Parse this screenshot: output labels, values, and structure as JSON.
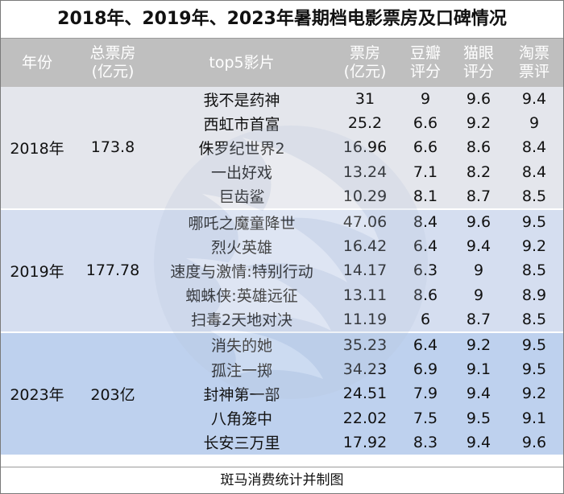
{
  "title": "2018年、2019年、2023年暑期档电影票房及口碑情况",
  "footer": "斑马消费统计并制图",
  "headers": {
    "year": "年份",
    "total_line1": "总票房",
    "total_line2": "(亿元)",
    "films": "top5影片",
    "box_line1": "票房",
    "box_line2": "(亿元)",
    "douban_line1": "豆瓣",
    "douban_line2": "评分",
    "maoyan_line1": "猫眼",
    "maoyan_line2": "评分",
    "taopiao_line1": "淘票",
    "taopiao_line2": "票评"
  },
  "groups": [
    {
      "year": "2018年",
      "total": "173.8",
      "films": [
        {
          "name": "我不是药神",
          "box": "31",
          "douban": "9",
          "maoyan": "9.6",
          "taopiao": "9.4"
        },
        {
          "name": "西虹市首富",
          "box": "25.2",
          "douban": "6.6",
          "maoyan": "9.2",
          "taopiao": "9"
        },
        {
          "name": "侏罗纪世界2",
          "box": "16.96",
          "douban": "6.6",
          "maoyan": "8.6",
          "taopiao": "8.4"
        },
        {
          "name": "一出好戏",
          "box": "13.24",
          "douban": "7.1",
          "maoyan": "8.2",
          "taopiao": "8.4"
        },
        {
          "name": "巨齿鲨",
          "box": "10.29",
          "douban": "8.1",
          "maoyan": "8.7",
          "taopiao": "8.5"
        }
      ]
    },
    {
      "year": "2019年",
      "total": "177.78",
      "films": [
        {
          "name": "哪吒之魔童降世",
          "box": "47.06",
          "douban": "8.4",
          "maoyan": "9.6",
          "taopiao": "9.5"
        },
        {
          "name": "烈火英雄",
          "box": "16.42",
          "douban": "6.4",
          "maoyan": "9.4",
          "taopiao": "9.2"
        },
        {
          "name": "速度与激情:特别行动",
          "box": "14.17",
          "douban": "6.3",
          "maoyan": "9",
          "taopiao": "8.5"
        },
        {
          "name": "蜘蛛侠:英雄远征",
          "box": "13.11",
          "douban": "8.6",
          "maoyan": "9",
          "taopiao": "8.9"
        },
        {
          "name": "扫毒2天地对决",
          "box": "11.19",
          "douban": "6",
          "maoyan": "8.7",
          "taopiao": "8.5"
        }
      ]
    },
    {
      "year": "2023年",
      "total": "203亿",
      "films": [
        {
          "name": "消失的她",
          "box": "35.23",
          "douban": "6.4",
          "maoyan": "9.2",
          "taopiao": "9.5"
        },
        {
          "name": "孤注一掷",
          "box": "34.23",
          "douban": "6.9",
          "maoyan": "9.1",
          "taopiao": "9.5"
        },
        {
          "name": "封神第一部",
          "box": "24.51",
          "douban": "7.9",
          "maoyan": "9.4",
          "taopiao": "9.2"
        },
        {
          "name": "八角笼中",
          "box": "22.02",
          "douban": "7.5",
          "maoyan": "9.5",
          "taopiao": "9.1"
        },
        {
          "name": "长安三万里",
          "box": "17.92",
          "douban": "8.3",
          "maoyan": "9.4",
          "taopiao": "9.6"
        }
      ]
    }
  ],
  "chart_data": {
    "type": "table",
    "title": "2018年、2019年、2023年暑期档电影票房及口碑情况",
    "columns": [
      "年份",
      "总票房(亿元)",
      "top5影片",
      "票房(亿元)",
      "豆瓣评分",
      "猫眼评分",
      "淘票票评"
    ],
    "rows": [
      [
        "2018年",
        "173.8",
        "我不是药神",
        31,
        9,
        9.6,
        9.4
      ],
      [
        "2018年",
        "173.8",
        "西虹市首富",
        25.2,
        6.6,
        9.2,
        9
      ],
      [
        "2018年",
        "173.8",
        "侏罗纪世界2",
        16.96,
        6.6,
        8.6,
        8.4
      ],
      [
        "2018年",
        "173.8",
        "一出好戏",
        13.24,
        7.1,
        8.2,
        8.4
      ],
      [
        "2018年",
        "173.8",
        "巨齿鲨",
        10.29,
        8.1,
        8.7,
        8.5
      ],
      [
        "2019年",
        "177.78",
        "哪吒之魔童降世",
        47.06,
        8.4,
        9.6,
        9.5
      ],
      [
        "2019年",
        "177.78",
        "烈火英雄",
        16.42,
        6.4,
        9.4,
        9.2
      ],
      [
        "2019年",
        "177.78",
        "速度与激情:特别行动",
        14.17,
        6.3,
        9,
        8.5
      ],
      [
        "2019年",
        "177.78",
        "蜘蛛侠:英雄远征",
        13.11,
        8.6,
        9,
        8.9
      ],
      [
        "2019年",
        "177.78",
        "扫毒2天地对决",
        11.19,
        6,
        8.7,
        8.5
      ],
      [
        "2023年",
        "203亿",
        "消失的她",
        35.23,
        6.4,
        9.2,
        9.5
      ],
      [
        "2023年",
        "203亿",
        "孤注一掷",
        34.23,
        6.9,
        9.1,
        9.5
      ],
      [
        "2023年",
        "203亿",
        "封神第一部",
        24.51,
        7.9,
        9.4,
        9.2
      ],
      [
        "2023年",
        "203亿",
        "八角笼中",
        22.02,
        7.5,
        9.5,
        9.1
      ],
      [
        "2023年",
        "203亿",
        "长安三万里",
        17.92,
        8.3,
        9.4,
        9.6
      ]
    ]
  },
  "colors": {
    "header_bg": "#bfbfbf",
    "header_text": "#ffffff",
    "row_2018": "#e4e6ec",
    "row_2019": "#d5def0",
    "row_2023": "#bed1ee"
  },
  "icons": {
    "watermark": "zebra-logo-icon"
  }
}
